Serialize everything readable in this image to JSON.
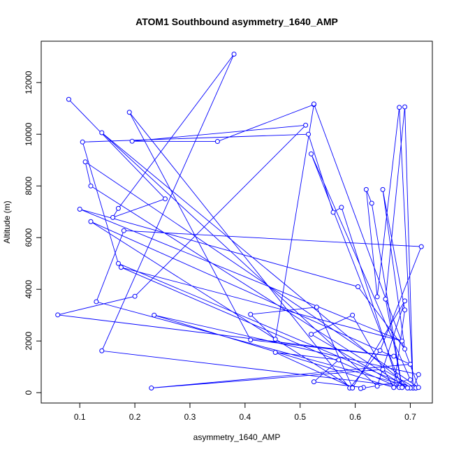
{
  "chart_data": {
    "type": "line",
    "title": "ATOM1 Southbound asymmetry_1640_AMP",
    "xlabel": "asymmetry_1640_AMP",
    "ylabel": "Altitude (m)",
    "xlim": [
      0.03,
      0.74
    ],
    "ylim": [
      -400,
      13600
    ],
    "xticks": [
      0.1,
      0.2,
      0.3,
      0.4,
      0.5,
      0.6,
      0.7
    ],
    "yticks": [
      0,
      2000,
      4000,
      6000,
      8000,
      10000,
      12000
    ],
    "grid": false,
    "marker": "open-circle",
    "color": "#0000ff",
    "series": [
      {
        "x": [
          0.08,
          0.255,
          0.16,
          0.17,
          0.38,
          0.14,
          0.71,
          0.13,
          0.18,
          0.72,
          0.645,
          0.59,
          0.19,
          0.41,
          0.67,
          0.06,
          0.2,
          0.51,
          0.195,
          0.35,
          0.525,
          0.455,
          0.41,
          0.53,
          0.595,
          0.455,
          0.57,
          0.525,
          0.615,
          0.61,
          0.7,
          0.52,
          0.685,
          0.52,
          0.595,
          0.67,
          0.69,
          0.65,
          0.69,
          0.605,
          0.1,
          0.685,
          0.175,
          0.68,
          0.575,
          0.56,
          0.515,
          0.105,
          0.17,
          0.705,
          0.69,
          0.655,
          0.685,
          0.63,
          0.62,
          0.64,
          0.68,
          0.705,
          0.715,
          0.235,
          0.67,
          0.71,
          0.65,
          0.23,
          0.7,
          0.12,
          0.595,
          0.69,
          0.64,
          0.14,
          0.7,
          0.695,
          0.12,
          0.11,
          0.715,
          0.525
        ],
        "y": [
          11350,
          7500,
          6780,
          7130,
          13100,
          1620,
          180,
          3520,
          6270,
          5650,
          1630,
          180,
          10850,
          2040,
          1410,
          3010,
          3730,
          10350,
          9730,
          9720,
          11150,
          2070,
          3030,
          3310,
          200,
          1560,
          1270,
          420,
          200,
          160,
          500,
          9240,
          200,
          2260,
          3000,
          200,
          3200,
          7860,
          1690,
          4100,
          7100,
          2000,
          4850,
          200,
          7170,
          6980,
          10000,
          9700,
          5000,
          180,
          11060,
          3620,
          200,
          7330,
          7860,
          3710,
          11040,
          180,
          700,
          3000,
          200,
          180,
          900,
          180,
          1100,
          6620,
          180,
          3550,
          250,
          10060,
          180,
          180,
          8000,
          8930,
          200,
          11170
        ]
      }
    ]
  }
}
